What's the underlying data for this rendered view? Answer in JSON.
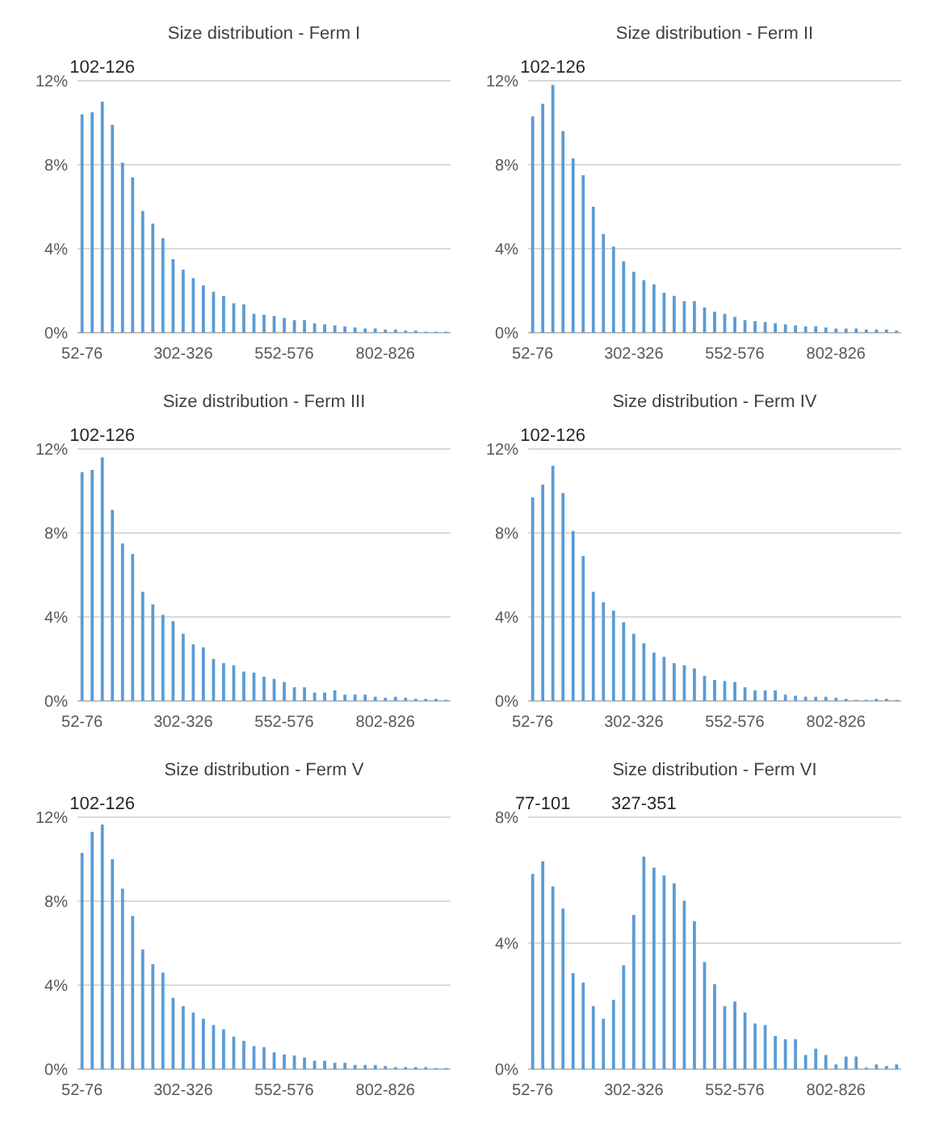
{
  "chart_data": [
    {
      "type": "bar",
      "title": "Size distribution - Ferm I",
      "categories": [
        "52-76",
        null,
        null,
        null,
        null,
        null,
        null,
        null,
        null,
        null,
        "302-326",
        null,
        null,
        null,
        null,
        null,
        null,
        null,
        null,
        null,
        "552-576",
        null,
        null,
        null,
        null,
        null,
        null,
        null,
        null,
        null,
        "802-826",
        null,
        null,
        null,
        null,
        null,
        null
      ],
      "values": [
        10.4,
        10.5,
        11.0,
        9.9,
        8.1,
        7.4,
        5.8,
        5.2,
        4.5,
        3.5,
        3.0,
        2.6,
        2.25,
        1.95,
        1.75,
        1.4,
        1.35,
        0.9,
        0.85,
        0.8,
        0.7,
        0.6,
        0.6,
        0.45,
        0.4,
        0.35,
        0.3,
        0.25,
        0.2,
        0.2,
        0.15,
        0.15,
        0.1,
        0.1,
        0.05,
        0.05,
        0.05
      ],
      "color": "#5b9bd5",
      "ylim": [
        0,
        12
      ],
      "yticks": [
        {
          "value": 0,
          "label": "0%"
        },
        {
          "value": 4,
          "label": "4%"
        },
        {
          "value": 8,
          "label": "8%"
        },
        {
          "value": 12,
          "label": "12%"
        }
      ],
      "grid": "y",
      "annotations": [
        {
          "text": "102-126",
          "y": 11.0
        }
      ]
    },
    {
      "type": "bar",
      "title": "Size distribution - Ferm II",
      "categories": [
        "52-76",
        null,
        null,
        null,
        null,
        null,
        null,
        null,
        null,
        null,
        "302-326",
        null,
        null,
        null,
        null,
        null,
        null,
        null,
        null,
        null,
        "552-576",
        null,
        null,
        null,
        null,
        null,
        null,
        null,
        null,
        null,
        "802-826",
        null,
        null,
        null,
        null,
        null,
        null
      ],
      "values": [
        10.3,
        10.9,
        11.8,
        9.6,
        8.3,
        7.5,
        6.0,
        4.7,
        4.1,
        3.4,
        2.9,
        2.5,
        2.3,
        1.9,
        1.75,
        1.5,
        1.5,
        1.2,
        1.0,
        0.9,
        0.75,
        0.6,
        0.55,
        0.5,
        0.45,
        0.4,
        0.35,
        0.3,
        0.3,
        0.25,
        0.2,
        0.2,
        0.2,
        0.15,
        0.15,
        0.15,
        0.1
      ],
      "color": "#5b9bd5",
      "ylim": [
        0,
        12
      ],
      "yticks": [
        {
          "value": 0,
          "label": "0%"
        },
        {
          "value": 4,
          "label": "4%"
        },
        {
          "value": 8,
          "label": "8%"
        },
        {
          "value": 12,
          "label": "12%"
        }
      ],
      "grid": "y",
      "annotations": [
        {
          "text": "102-126",
          "y": 11.8
        }
      ]
    },
    {
      "type": "bar",
      "title": "Size distribution - Ferm III",
      "categories": [
        "52-76",
        null,
        null,
        null,
        null,
        null,
        null,
        null,
        null,
        null,
        "302-326",
        null,
        null,
        null,
        null,
        null,
        null,
        null,
        null,
        null,
        "552-576",
        null,
        null,
        null,
        null,
        null,
        null,
        null,
        null,
        null,
        "802-826",
        null,
        null,
        null,
        null,
        null,
        null
      ],
      "values": [
        10.9,
        11.0,
        11.6,
        9.1,
        7.5,
        7.0,
        5.2,
        4.6,
        4.1,
        3.8,
        3.2,
        2.7,
        2.55,
        2.0,
        1.8,
        1.7,
        1.4,
        1.35,
        1.15,
        1.05,
        0.9,
        0.65,
        0.65,
        0.4,
        0.4,
        0.5,
        0.3,
        0.3,
        0.3,
        0.2,
        0.15,
        0.2,
        0.15,
        0.1,
        0.1,
        0.1,
        0.05
      ],
      "color": "#5b9bd5",
      "ylim": [
        0,
        12
      ],
      "yticks": [
        {
          "value": 0,
          "label": "0%"
        },
        {
          "value": 4,
          "label": "4%"
        },
        {
          "value": 8,
          "label": "8%"
        },
        {
          "value": 12,
          "label": "12%"
        }
      ],
      "grid": "y",
      "annotations": [
        {
          "text": "102-126",
          "y": 11.6
        }
      ]
    },
    {
      "type": "bar",
      "title": "Size distribution - Ferm IV",
      "categories": [
        "52-76",
        null,
        null,
        null,
        null,
        null,
        null,
        null,
        null,
        null,
        "302-326",
        null,
        null,
        null,
        null,
        null,
        null,
        null,
        null,
        null,
        "552-576",
        null,
        null,
        null,
        null,
        null,
        null,
        null,
        null,
        null,
        "802-826",
        null,
        null,
        null,
        null,
        null,
        null
      ],
      "values": [
        9.7,
        10.3,
        11.2,
        9.9,
        8.1,
        6.9,
        5.2,
        4.7,
        4.3,
        3.75,
        3.2,
        2.75,
        2.3,
        2.1,
        1.8,
        1.7,
        1.55,
        1.2,
        1.0,
        0.95,
        0.9,
        0.65,
        0.5,
        0.5,
        0.5,
        0.3,
        0.25,
        0.2,
        0.2,
        0.2,
        0.15,
        0.1,
        0.05,
        0.05,
        0.1,
        0.1,
        0.05
      ],
      "color": "#5b9bd5",
      "ylim": [
        0,
        12
      ],
      "yticks": [
        {
          "value": 0,
          "label": "0%"
        },
        {
          "value": 4,
          "label": "4%"
        },
        {
          "value": 8,
          "label": "8%"
        },
        {
          "value": 12,
          "label": "12%"
        }
      ],
      "grid": "y",
      "annotations": [
        {
          "text": "102-126",
          "y": 11.2
        }
      ]
    },
    {
      "type": "bar",
      "title": "Size distribution - Ferm V",
      "categories": [
        "52-76",
        null,
        null,
        null,
        null,
        null,
        null,
        null,
        null,
        null,
        "302-326",
        null,
        null,
        null,
        null,
        null,
        null,
        null,
        null,
        null,
        "552-576",
        null,
        null,
        null,
        null,
        null,
        null,
        null,
        null,
        null,
        "802-826",
        null,
        null,
        null,
        null,
        null,
        null
      ],
      "values": [
        10.3,
        11.3,
        11.65,
        10.0,
        8.6,
        7.3,
        5.7,
        5.0,
        4.6,
        3.4,
        3.0,
        2.7,
        2.4,
        2.1,
        1.9,
        1.55,
        1.35,
        1.1,
        1.05,
        0.8,
        0.7,
        0.65,
        0.55,
        0.4,
        0.4,
        0.3,
        0.3,
        0.2,
        0.2,
        0.2,
        0.15,
        0.1,
        0.1,
        0.1,
        0.1,
        0.05,
        0.05
      ],
      "color": "#5b9bd5",
      "ylim": [
        0,
        12
      ],
      "yticks": [
        {
          "value": 0,
          "label": "0%"
        },
        {
          "value": 4,
          "label": "4%"
        },
        {
          "value": 8,
          "label": "8%"
        },
        {
          "value": 12,
          "label": "12%"
        }
      ],
      "grid": "y",
      "annotations": [
        {
          "text": "102-126",
          "y": 11.65
        }
      ]
    },
    {
      "type": "bar",
      "title": "Size distribution - Ferm VI",
      "categories": [
        "52-76",
        null,
        null,
        null,
        null,
        null,
        null,
        null,
        null,
        null,
        "302-326",
        null,
        null,
        null,
        null,
        null,
        null,
        null,
        null,
        null,
        "552-576",
        null,
        null,
        null,
        null,
        null,
        null,
        null,
        null,
        null,
        "802-826",
        null,
        null,
        null,
        null,
        null,
        null
      ],
      "values": [
        6.2,
        6.6,
        5.8,
        5.1,
        3.05,
        2.75,
        2.0,
        1.6,
        2.2,
        3.3,
        4.9,
        6.75,
        6.4,
        6.15,
        5.9,
        5.35,
        4.7,
        3.4,
        2.7,
        2.0,
        2.15,
        1.8,
        1.45,
        1.4,
        1.05,
        0.95,
        0.95,
        0.45,
        0.65,
        0.45,
        0.15,
        0.4,
        0.4,
        0.05,
        0.15,
        0.1,
        0.15
      ],
      "color": "#5b9bd5",
      "ylim": [
        0,
        8
      ],
      "yticks": [
        {
          "value": 0,
          "label": "0%"
        },
        {
          "value": 4,
          "label": "4%"
        },
        {
          "value": 8,
          "label": "8%"
        }
      ],
      "grid": "y",
      "annotations": [
        {
          "text": "77-101",
          "y": 6.6
        },
        {
          "text": "327-351",
          "y": 6.75
        }
      ]
    }
  ]
}
